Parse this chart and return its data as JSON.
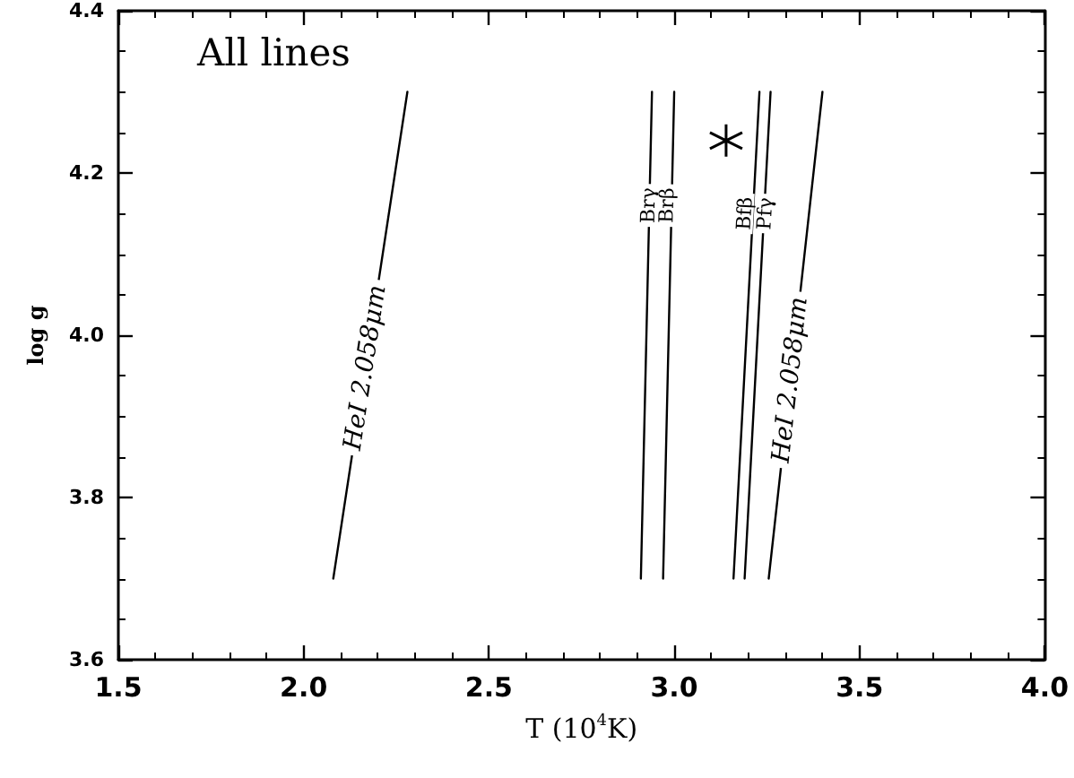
{
  "chart_data": {
    "type": "line",
    "title": "All lines",
    "xlabel": "T (10$^{4}$K)",
    "ylabel": "log g",
    "xlim": [
      1.5,
      4.0
    ],
    "xticks": [
      1.5,
      {
        "value": 2.0,
        "label": "2.0"
      },
      2.5,
      {
        "value": 3.0,
        "label": "3.0"
      },
      3.5,
      {
        "value": 4.0,
        "label": "4.0"
      }
    ],
    "ylim": [
      3.6,
      4.4
    ],
    "yticks": [
      3.6,
      3.8,
      {
        "value": 4.0,
        "label": "4.0"
      },
      4.2,
      4.4
    ],
    "grid": false,
    "marker": "none",
    "line_style": "solid",
    "series": [
      {
        "color": "#000000",
        "x": [
          2.08,
          2.28
        ],
        "values": [
          3.7,
          4.3
        ]
      },
      {
        "color": "#000000",
        "x": [
          2.91,
          2.94
        ],
        "values": [
          3.7,
          4.3
        ]
      },
      {
        "color": "#000000",
        "x": [
          2.97,
          3.0
        ],
        "values": [
          3.7,
          4.3
        ]
      },
      {
        "color": "#000000",
        "x": [
          3.16,
          3.23
        ],
        "values": [
          3.7,
          4.3
        ]
      },
      {
        "color": "#000000",
        "x": [
          3.19,
          3.26
        ],
        "values": [
          3.7,
          4.3
        ]
      },
      {
        "color": "#000000",
        "x": [
          3.255,
          3.4
        ],
        "values": [
          3.7,
          4.3
        ]
      },
      {
        "type": "scatter",
        "marker": "cross",
        "color": "#000000",
        "x": [
          3.14
        ],
        "values": [
          4.24
        ]
      }
    ],
    "annotations": [
      {
        "text": "HeI 2.058μm",
        "x": 2.167,
        "y": 3.96
      },
      {
        "text": "Brγ",
        "x": 2.93,
        "y": 4.16
      },
      {
        "text": "Brβ",
        "x": 2.98,
        "y": 4.16
      },
      {
        "text": "Bfβ",
        "x": 3.19,
        "y": 4.15
      },
      {
        "text": "Pfγ",
        "x": 3.245,
        "y": 4.15
      },
      {
        "text": "HeI 2.058μm",
        "x": 3.314,
        "y": 3.945
      }
    ]
  }
}
